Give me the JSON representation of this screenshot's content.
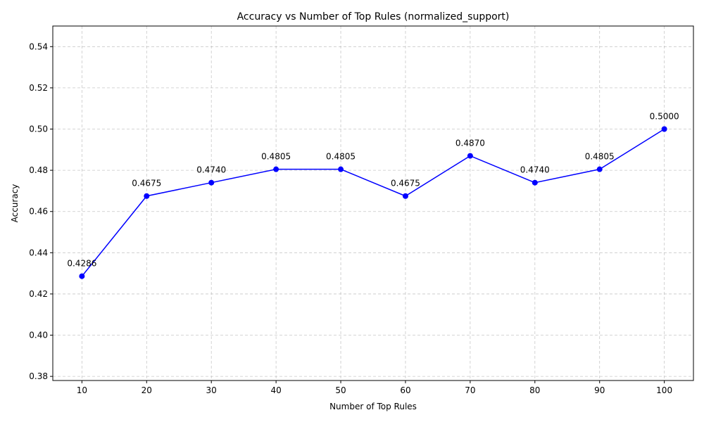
{
  "chart_data": {
    "type": "line",
    "title": "Accuracy vs Number of Top Rules (normalized_support)",
    "xlabel": "Number of Top Rules",
    "ylabel": "Accuracy",
    "x": [
      10,
      20,
      30,
      40,
      50,
      60,
      70,
      80,
      90,
      100
    ],
    "x_ticks": [
      "10",
      "20",
      "30",
      "40",
      "50",
      "60",
      "70",
      "80",
      "90",
      "100"
    ],
    "xlim": [
      5.5,
      104.5
    ],
    "ylim": [
      0.378,
      0.55
    ],
    "y_ticks": [
      "0.38",
      "0.40",
      "0.42",
      "0.44",
      "0.46",
      "0.48",
      "0.50",
      "0.52",
      "0.54"
    ],
    "series": [
      {
        "values": [
          0.4286,
          0.4675,
          0.474,
          0.4805,
          0.4805,
          0.4675,
          0.487,
          0.474,
          0.4805,
          0.5
        ],
        "color": "#0000ff",
        "marker": "circle"
      }
    ],
    "data_labels": [
      "0.4286",
      "0.4675",
      "0.4740",
      "0.4805",
      "0.4805",
      "0.4675",
      "0.4870",
      "0.4740",
      "0.4805",
      "0.5000"
    ],
    "grid": true
  }
}
